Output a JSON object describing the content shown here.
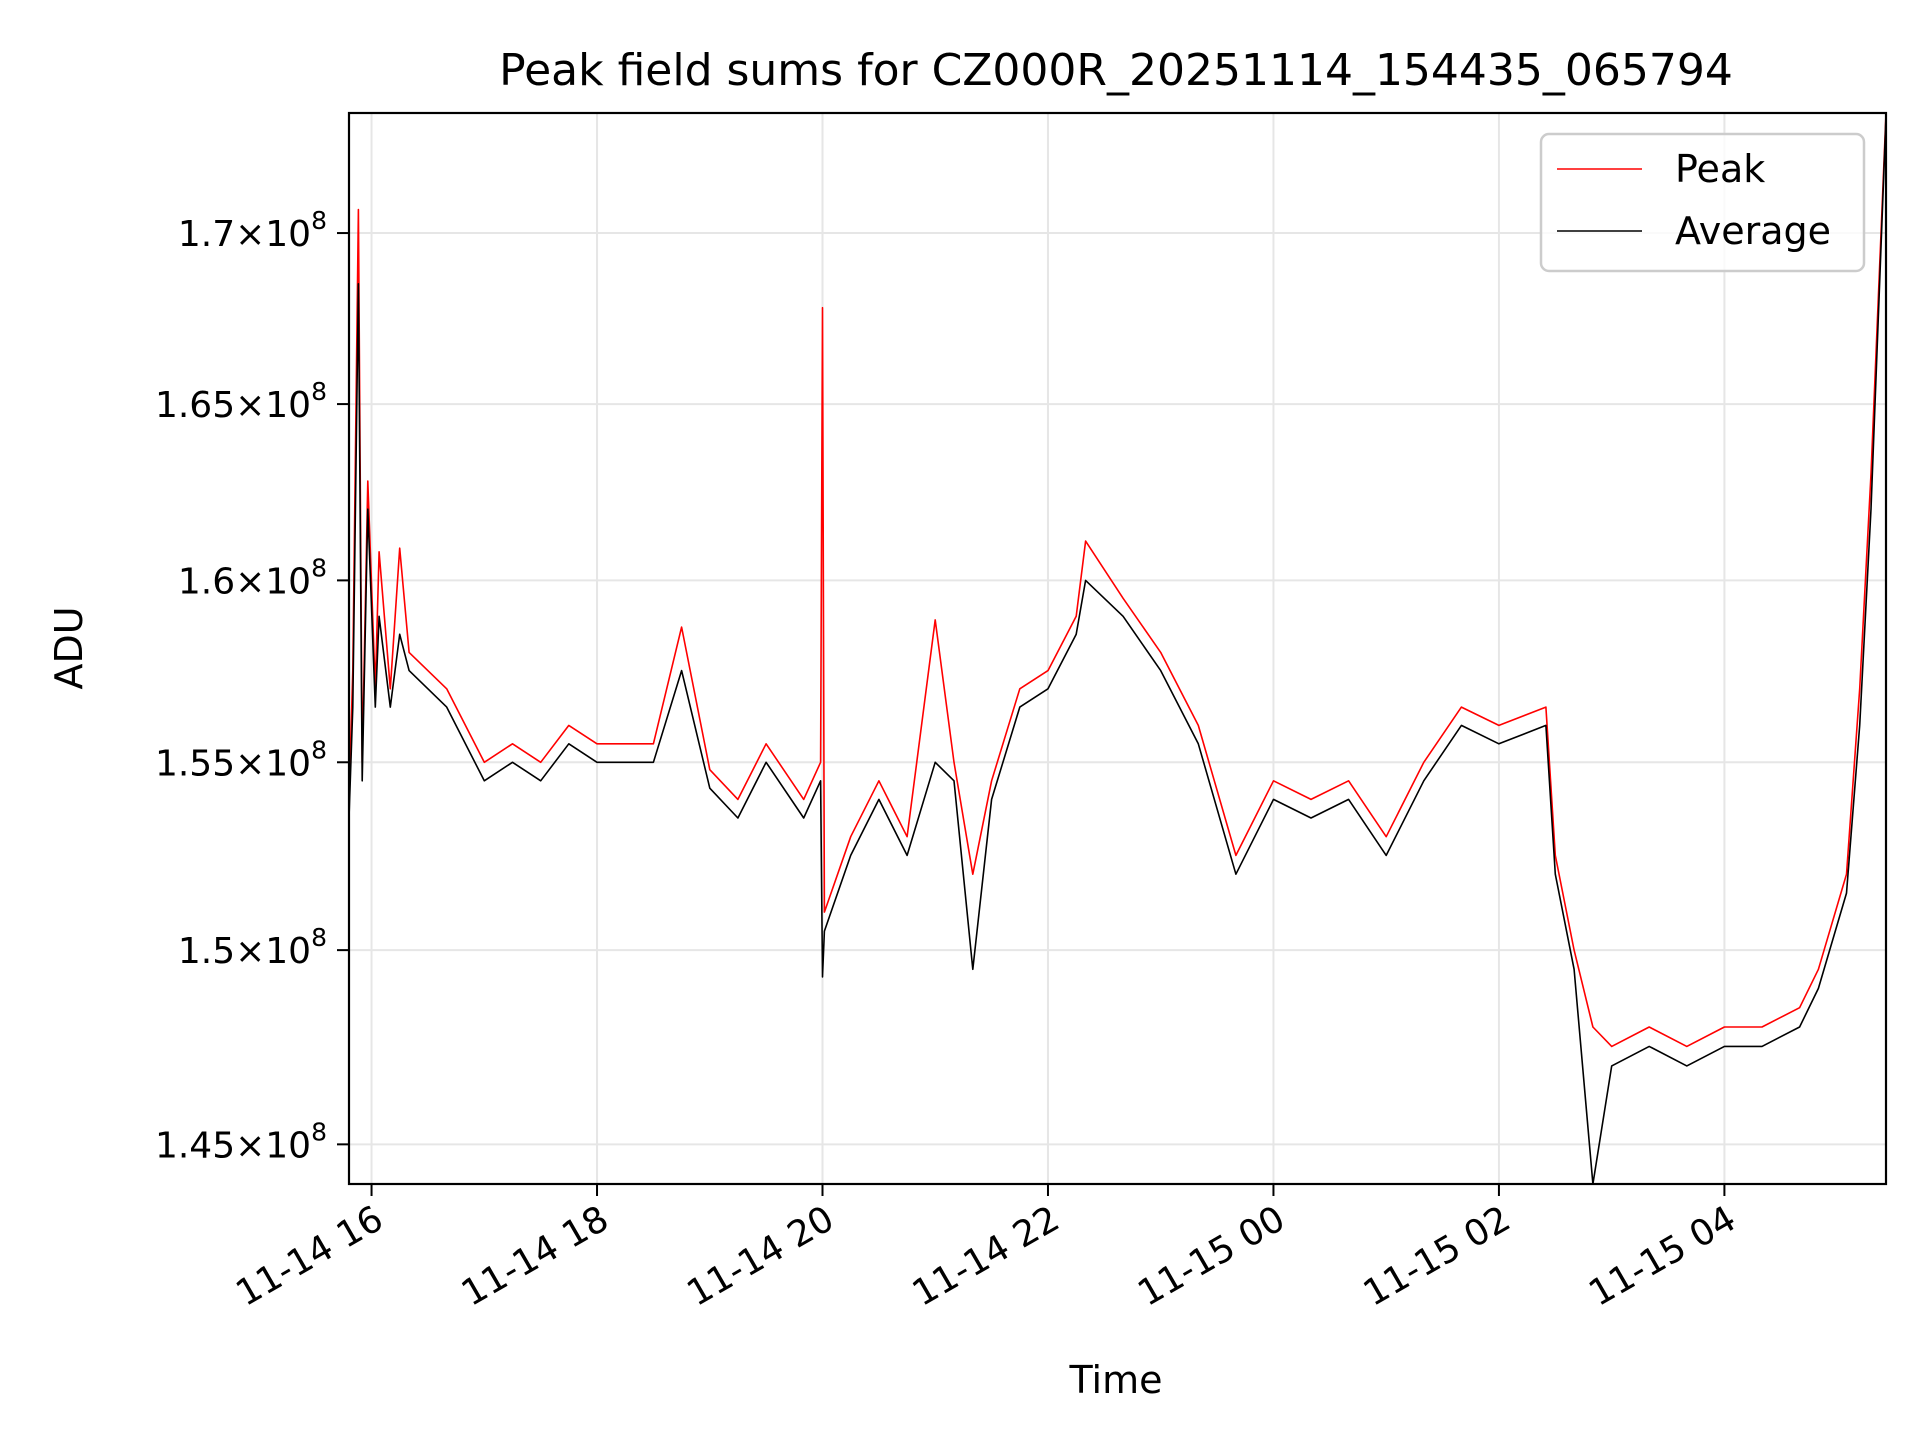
{
  "chart_data": {
    "type": "line",
    "title": "Peak field sums for CZ000R_20251114_154435_065794",
    "xlabel": "Time",
    "ylabel": "ADU",
    "x_axis_type": "datetime",
    "xlim": [
      "2025-11-14 15:48",
      "2025-11-15 05:26"
    ],
    "ylim": [
      144000000,
      173600000
    ],
    "y_scale": "log",
    "grid": true,
    "legend_position": "upper right",
    "x_ticks": [
      {
        "value": "2025-11-14 16:00",
        "label": "11-14 16"
      },
      {
        "value": "2025-11-14 18:00",
        "label": "11-14 18"
      },
      {
        "value": "2025-11-14 20:00",
        "label": "11-14 20"
      },
      {
        "value": "2025-11-14 22:00",
        "label": "11-14 22"
      },
      {
        "value": "2025-11-15 00:00",
        "label": "11-15 00"
      },
      {
        "value": "2025-11-15 02:00",
        "label": "11-15 02"
      },
      {
        "value": "2025-11-15 04:00",
        "label": "11-15 04"
      }
    ],
    "y_ticks": [
      {
        "value": 145000000,
        "mantissa": "1.45",
        "exponent": "8"
      },
      {
        "value": 150000000,
        "mantissa": "1.5",
        "exponent": "8"
      },
      {
        "value": 155000000,
        "mantissa": "1.55",
        "exponent": "8"
      },
      {
        "value": 160000000,
        "mantissa": "1.6",
        "exponent": "8"
      },
      {
        "value": 165000000,
        "mantissa": "1.65",
        "exponent": "8"
      },
      {
        "value": 170000000,
        "mantissa": "1.7",
        "exponent": "8"
      }
    ],
    "series": [
      {
        "name": "Peak",
        "color": "#ff0000",
        "points": [
          [
            "2025-11-14 15:48",
            154000000
          ],
          [
            "2025-11-14 15:50",
            157500000
          ],
          [
            "2025-11-14 15:53",
            170700000
          ],
          [
            "2025-11-14 15:55",
            155000000
          ],
          [
            "2025-11-14 15:58",
            162800000
          ],
          [
            "2025-11-14 16:02",
            157000000
          ],
          [
            "2025-11-14 16:04",
            160800000
          ],
          [
            "2025-11-14 16:10",
            157000000
          ],
          [
            "2025-11-14 16:15",
            160900000
          ],
          [
            "2025-11-14 16:20",
            158000000
          ],
          [
            "2025-11-14 16:40",
            157000000
          ],
          [
            "2025-11-14 17:00",
            155000000
          ],
          [
            "2025-11-14 17:15",
            155500000
          ],
          [
            "2025-11-14 17:30",
            155000000
          ],
          [
            "2025-11-14 17:45",
            156000000
          ],
          [
            "2025-11-14 18:00",
            155500000
          ],
          [
            "2025-11-14 18:30",
            155500000
          ],
          [
            "2025-11-14 18:45",
            158700000
          ],
          [
            "2025-11-14 19:00",
            154800000
          ],
          [
            "2025-11-14 19:15",
            154000000
          ],
          [
            "2025-11-14 19:30",
            155500000
          ],
          [
            "2025-11-14 19:50",
            154000000
          ],
          [
            "2025-11-14 19:59",
            155000000
          ],
          [
            "2025-11-14 20:00",
            167800000
          ],
          [
            "2025-11-14 20:01",
            151000000
          ],
          [
            "2025-11-14 20:15",
            153000000
          ],
          [
            "2025-11-14 20:30",
            154500000
          ],
          [
            "2025-11-14 20:45",
            153000000
          ],
          [
            "2025-11-14 21:00",
            158900000
          ],
          [
            "2025-11-14 21:10",
            155000000
          ],
          [
            "2025-11-14 21:20",
            152000000
          ],
          [
            "2025-11-14 21:30",
            154500000
          ],
          [
            "2025-11-14 21:45",
            157000000
          ],
          [
            "2025-11-14 22:00",
            157500000
          ],
          [
            "2025-11-14 22:15",
            159000000
          ],
          [
            "2025-11-14 22:20",
            161100000
          ],
          [
            "2025-11-14 22:40",
            159500000
          ],
          [
            "2025-11-14 23:00",
            158000000
          ],
          [
            "2025-11-14 23:20",
            156000000
          ],
          [
            "2025-11-14 23:40",
            152500000
          ],
          [
            "2025-11-15 00:00",
            154500000
          ],
          [
            "2025-11-15 00:20",
            154000000
          ],
          [
            "2025-11-15 00:40",
            154500000
          ],
          [
            "2025-11-15 01:00",
            153000000
          ],
          [
            "2025-11-15 01:20",
            155000000
          ],
          [
            "2025-11-15 01:40",
            156500000
          ],
          [
            "2025-11-15 02:00",
            156000000
          ],
          [
            "2025-11-15 02:25",
            156500000
          ],
          [
            "2025-11-15 02:30",
            152500000
          ],
          [
            "2025-11-15 02:40",
            150000000
          ],
          [
            "2025-11-15 02:50",
            148000000
          ],
          [
            "2025-11-15 03:00",
            147500000
          ],
          [
            "2025-11-15 03:20",
            148000000
          ],
          [
            "2025-11-15 03:40",
            147500000
          ],
          [
            "2025-11-15 04:00",
            148000000
          ],
          [
            "2025-11-15 04:20",
            148000000
          ],
          [
            "2025-11-15 04:40",
            148500000
          ],
          [
            "2025-11-15 04:50",
            149500000
          ],
          [
            "2025-11-15 05:05",
            152000000
          ],
          [
            "2025-11-15 05:12",
            157000000
          ],
          [
            "2025-11-15 05:18",
            163000000
          ],
          [
            "2025-11-15 05:26",
            173600000
          ]
        ]
      },
      {
        "name": "Average",
        "color": "#000000",
        "points": [
          [
            "2025-11-14 15:48",
            153500000
          ],
          [
            "2025-11-14 15:50",
            156500000
          ],
          [
            "2025-11-14 15:53",
            168500000
          ],
          [
            "2025-11-14 15:55",
            154500000
          ],
          [
            "2025-11-14 15:58",
            162000000
          ],
          [
            "2025-11-14 16:02",
            156500000
          ],
          [
            "2025-11-14 16:04",
            159000000
          ],
          [
            "2025-11-14 16:10",
            156500000
          ],
          [
            "2025-11-14 16:15",
            158500000
          ],
          [
            "2025-11-14 16:20",
            157500000
          ],
          [
            "2025-11-14 16:40",
            156500000
          ],
          [
            "2025-11-14 17:00",
            154500000
          ],
          [
            "2025-11-14 17:15",
            155000000
          ],
          [
            "2025-11-14 17:30",
            154500000
          ],
          [
            "2025-11-14 17:45",
            155500000
          ],
          [
            "2025-11-14 18:00",
            155000000
          ],
          [
            "2025-11-14 18:30",
            155000000
          ],
          [
            "2025-11-14 18:45",
            157500000
          ],
          [
            "2025-11-14 19:00",
            154300000
          ],
          [
            "2025-11-14 19:15",
            153500000
          ],
          [
            "2025-11-14 19:30",
            155000000
          ],
          [
            "2025-11-14 19:50",
            153500000
          ],
          [
            "2025-11-14 19:59",
            154500000
          ],
          [
            "2025-11-14 20:00",
            149300000
          ],
          [
            "2025-11-14 20:01",
            150500000
          ],
          [
            "2025-11-14 20:15",
            152500000
          ],
          [
            "2025-11-14 20:30",
            154000000
          ],
          [
            "2025-11-14 20:45",
            152500000
          ],
          [
            "2025-11-14 21:00",
            155000000
          ],
          [
            "2025-11-14 21:10",
            154500000
          ],
          [
            "2025-11-14 21:20",
            149500000
          ],
          [
            "2025-11-14 21:30",
            154000000
          ],
          [
            "2025-11-14 21:45",
            156500000
          ],
          [
            "2025-11-14 22:00",
            157000000
          ],
          [
            "2025-11-14 22:15",
            158500000
          ],
          [
            "2025-11-14 22:20",
            160000000
          ],
          [
            "2025-11-14 22:40",
            159000000
          ],
          [
            "2025-11-14 23:00",
            157500000
          ],
          [
            "2025-11-14 23:20",
            155500000
          ],
          [
            "2025-11-14 23:40",
            152000000
          ],
          [
            "2025-11-15 00:00",
            154000000
          ],
          [
            "2025-11-15 00:20",
            153500000
          ],
          [
            "2025-11-15 00:40",
            154000000
          ],
          [
            "2025-11-15 01:00",
            152500000
          ],
          [
            "2025-11-15 01:20",
            154500000
          ],
          [
            "2025-11-15 01:40",
            156000000
          ],
          [
            "2025-11-15 02:00",
            155500000
          ],
          [
            "2025-11-15 02:25",
            156000000
          ],
          [
            "2025-11-15 02:30",
            152000000
          ],
          [
            "2025-11-15 02:40",
            149500000
          ],
          [
            "2025-11-15 02:50",
            144000000
          ],
          [
            "2025-11-15 03:00",
            147000000
          ],
          [
            "2025-11-15 03:20",
            147500000
          ],
          [
            "2025-11-15 03:40",
            147000000
          ],
          [
            "2025-11-15 04:00",
            147500000
          ],
          [
            "2025-11-15 04:20",
            147500000
          ],
          [
            "2025-11-15 04:40",
            148000000
          ],
          [
            "2025-11-15 04:50",
            149000000
          ],
          [
            "2025-11-15 05:05",
            151500000
          ],
          [
            "2025-11-15 05:12",
            156000000
          ],
          [
            "2025-11-15 05:18",
            162000000
          ],
          [
            "2025-11-15 05:26",
            173500000
          ]
        ]
      }
    ]
  }
}
